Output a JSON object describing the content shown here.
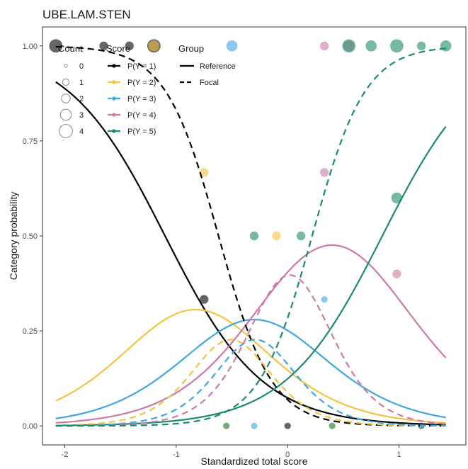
{
  "chart_data": {
    "type": "line",
    "title": "UBE.LAM.STEN",
    "xlabel": "Standardized total score",
    "ylabel": "Category probability",
    "xlim": [
      -2.2,
      1.6
    ],
    "ylim": [
      -0.05,
      1.05
    ],
    "x_ticks": [
      -2,
      -1,
      0,
      1
    ],
    "x_tick_labels": [
      "-2",
      "-1",
      "0",
      "1"
    ],
    "y_ticks": [
      0,
      0.25,
      0.5,
      0.75,
      1.0
    ],
    "y_tick_labels": [
      "0.00",
      "0.25",
      "0.50",
      "0.75",
      "1.00"
    ],
    "grid": false,
    "x_range": [
      -2.08,
      1.42
    ],
    "legend": {
      "placement": "top-left",
      "count": {
        "title": "Count",
        "values": [
          "0",
          "1",
          "2",
          "3",
          "4"
        ]
      },
      "score": {
        "title": "Score",
        "labels": [
          "P(Y = 1)",
          "P(Y = 2)",
          "P(Y = 3)",
          "P(Y = 4)",
          "P(Y = 5)"
        ]
      },
      "group": {
        "title": "Group",
        "labels": [
          "Reference",
          "Focal"
        ]
      }
    },
    "colors": {
      "cat1": "#000000",
      "cat2": "#F5C342",
      "cat3": "#3DA7E0",
      "cat4": "#CC79A7",
      "cat5": "#1A8C6A"
    },
    "curves": {
      "reference": {
        "discrimination": 2.3,
        "thresholds": [
          -1.1,
          -0.55,
          -0.05,
          0.85
        ]
      },
      "focal": {
        "discrimination": 4.2,
        "thresholds": [
          -0.62,
          -0.4,
          -0.18,
          0.22
        ]
      }
    },
    "observed_points": [
      {
        "category": 1,
        "points": [
          [
            -2.08,
            1.0,
            4
          ],
          [
            -1.65,
            1.0,
            2
          ],
          [
            -1.42,
            1.0,
            2
          ],
          [
            -1.2,
            1.0,
            4
          ],
          [
            -0.75,
            0.333,
            2
          ],
          [
            0.0,
            0.0,
            1
          ]
        ]
      },
      {
        "category": 2,
        "points": [
          [
            -1.2,
            1.0,
            3
          ],
          [
            -0.75,
            0.667,
            2
          ],
          [
            -0.55,
            0.0,
            1
          ],
          [
            -0.1,
            0.5,
            2
          ],
          [
            0.4,
            0.0,
            1
          ]
        ]
      },
      {
        "category": 3,
        "points": [
          [
            -0.5,
            1.0,
            3
          ],
          [
            0.33,
            0.333,
            1
          ],
          [
            -0.3,
            0.0,
            1
          ]
        ]
      },
      {
        "category": 4,
        "points": [
          [
            0.33,
            1.0,
            2
          ],
          [
            0.55,
            1.0,
            3
          ],
          [
            0.33,
            0.667,
            2
          ],
          [
            0.98,
            0.4,
            2
          ],
          [
            1.2,
            0.0,
            1
          ]
        ]
      },
      {
        "category": 5,
        "points": [
          [
            -0.3,
            0.5,
            2
          ],
          [
            0.12,
            0.5,
            2
          ],
          [
            0.55,
            1.0,
            4
          ],
          [
            0.75,
            1.0,
            3
          ],
          [
            0.98,
            0.6,
            3
          ],
          [
            0.98,
            1.0,
            4
          ],
          [
            1.2,
            1.0,
            2
          ],
          [
            1.42,
            1.0,
            3
          ],
          [
            -0.55,
            0.0,
            1
          ],
          [
            0.4,
            0.0,
            1
          ],
          [
            1.2,
            0.0,
            1
          ]
        ]
      }
    ]
  }
}
